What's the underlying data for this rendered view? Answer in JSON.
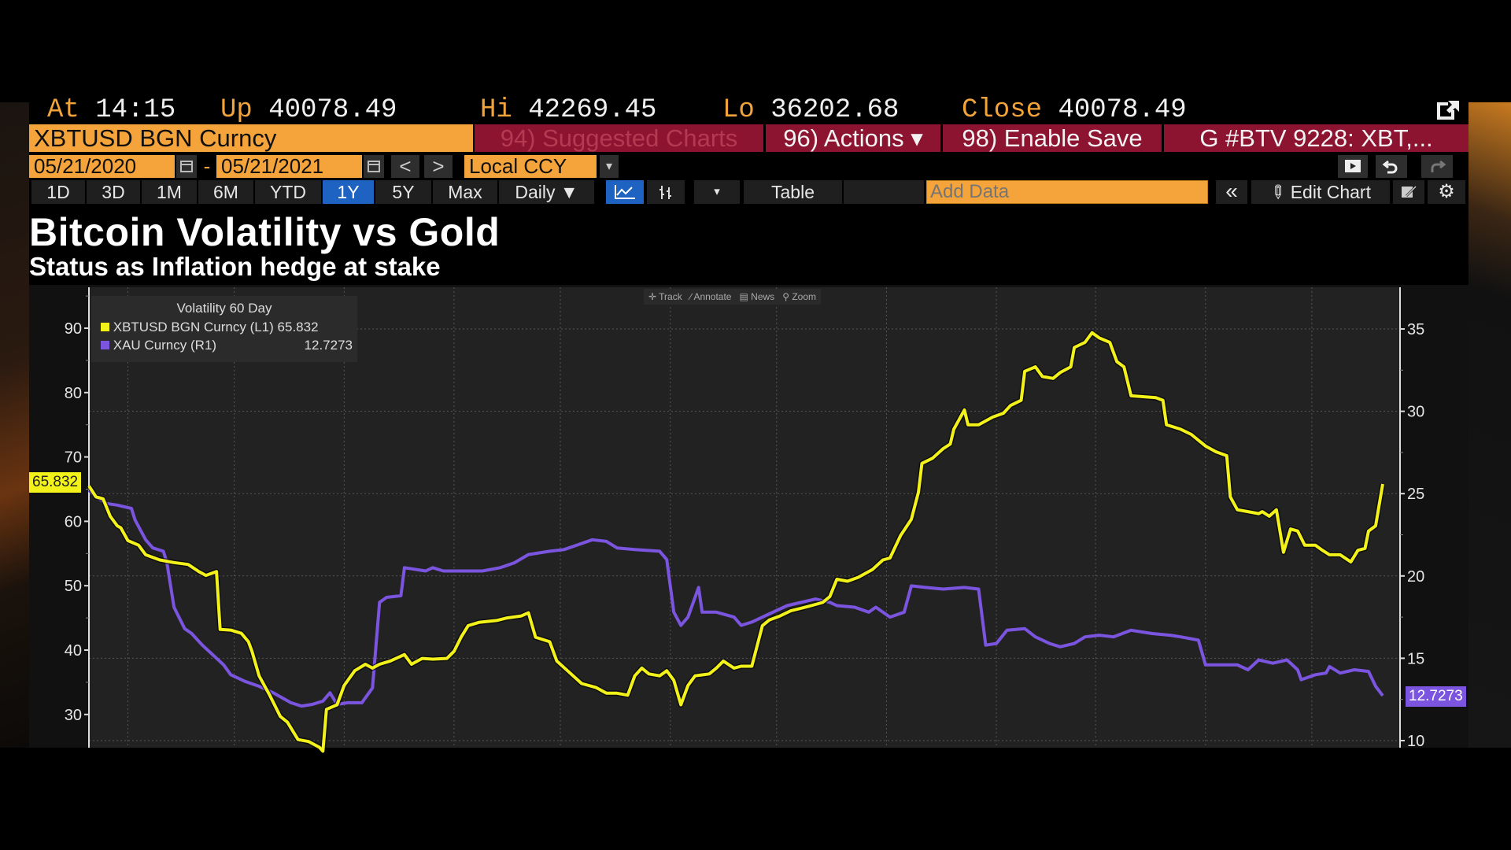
{
  "quote_bar": {
    "at_label": "At",
    "at_value": "14:15",
    "up_label": "Up",
    "up_value": "40078.49",
    "hi_label": "Hi",
    "hi_value": "42269.45",
    "lo_label": "Lo",
    "lo_value": "36202.68",
    "close_label": "Close",
    "close_value": "40078.49"
  },
  "command_bar": {
    "security": "XBTUSD BGN Curncy",
    "suggested": "94) Suggested Charts",
    "actions": "96) Actions ▾",
    "enable_save": "98) Enable Save",
    "chart_name": "G #BTV 9228: XBT,..."
  },
  "date_bar": {
    "start_date": "05/21/2020",
    "separator": "-",
    "end_date": "05/21/2021",
    "prev": "<",
    "next": ">",
    "currency": "Local CCY",
    "currency_dropdown": "▾"
  },
  "toolbar": {
    "ranges": [
      "1D",
      "3D",
      "1M",
      "6M",
      "YTD",
      "1Y",
      "5Y",
      "Max"
    ],
    "selected_range": "1Y",
    "period": "Daily ▼",
    "more": "▾",
    "table": "Table",
    "add_data_placeholder": "Add Data",
    "collapse": "«",
    "edit_chart": "Edit Chart"
  },
  "colors": {
    "btc": "#f2f21a",
    "gold": "#7b55e0",
    "accent": "#f4a43a",
    "red_bar": "#8c1430",
    "selected": "#1e63c2"
  },
  "chart_tools": {
    "track": "Track",
    "annotate": "Annotate",
    "news": "News",
    "zoom": "Zoom"
  },
  "chart_data": {
    "type": "line",
    "title": "Bitcoin Volatility vs Gold",
    "subtitle": "Status as Inflation hedge at stake",
    "legend_title": "Volatility 60 Day",
    "legend_placement": "top-left",
    "x_unit": "days since 05/21/2020",
    "xlim": [
      0,
      365
    ],
    "x_gridlines_days": [
      11,
      41,
      72,
      103,
      133,
      164,
      194,
      225,
      256,
      284,
      315,
      345
    ],
    "left_axis": {
      "ylim": [
        24.6,
        96
      ],
      "ticks": [
        30,
        40,
        50,
        60,
        70,
        80,
        90
      ]
    },
    "right_axis": {
      "ylim": [
        7.9,
        36
      ],
      "ticks": [
        10,
        15,
        20,
        25,
        30,
        35
      ]
    },
    "grid": true,
    "series": [
      {
        "name": "XBTUSD BGN Curncy",
        "axis_label": "(L1)",
        "axis": "left",
        "last": "65.832",
        "points": [
          [
            0,
            65.5
          ],
          [
            2,
            63.8
          ],
          [
            4,
            63.5
          ],
          [
            6,
            60.8
          ],
          [
            8,
            59.3
          ],
          [
            9,
            59.0
          ],
          [
            11,
            57.0
          ],
          [
            14,
            56.3
          ],
          [
            16,
            54.8
          ],
          [
            20,
            54.0
          ],
          [
            24,
            53.6
          ],
          [
            28,
            53.3
          ],
          [
            31,
            52.2
          ],
          [
            33,
            51.6
          ],
          [
            36,
            52.2
          ],
          [
            37,
            43.2
          ],
          [
            40,
            43.1
          ],
          [
            43,
            42.6
          ],
          [
            45,
            41.3
          ],
          [
            46,
            39.8
          ],
          [
            48,
            36.0
          ],
          [
            51,
            33.0
          ],
          [
            54,
            29.7
          ],
          [
            56,
            28.8
          ],
          [
            59,
            26.1
          ],
          [
            62,
            25.8
          ],
          [
            65,
            24.9
          ],
          [
            66,
            24.3
          ],
          [
            67,
            30.8
          ],
          [
            70,
            31.5
          ],
          [
            72,
            34.5
          ],
          [
            75,
            36.8
          ],
          [
            78,
            37.8
          ],
          [
            80,
            37.2
          ],
          [
            82,
            37.8
          ],
          [
            85,
            38.3
          ],
          [
            89,
            39.3
          ],
          [
            91,
            37.8
          ],
          [
            94,
            38.7
          ],
          [
            97,
            38.6
          ],
          [
            101,
            38.7
          ],
          [
            103,
            39.8
          ],
          [
            105,
            42.0
          ],
          [
            107,
            43.8
          ],
          [
            110,
            44.3
          ],
          [
            115,
            44.6
          ],
          [
            118,
            45.0
          ],
          [
            122,
            45.3
          ],
          [
            124,
            45.8
          ],
          [
            126,
            42.0
          ],
          [
            130,
            41.3
          ],
          [
            132,
            38.3
          ],
          [
            135,
            36.8
          ],
          [
            139,
            34.8
          ],
          [
            143,
            34.2
          ],
          [
            146,
            33.3
          ],
          [
            149,
            33.3
          ],
          [
            152,
            33.0
          ],
          [
            154,
            36.0
          ],
          [
            156,
            37.2
          ],
          [
            158,
            36.3
          ],
          [
            161,
            36.0
          ],
          [
            163,
            36.8
          ],
          [
            165,
            35.3
          ],
          [
            167,
            31.5
          ],
          [
            169,
            34.5
          ],
          [
            171,
            36.0
          ],
          [
            175,
            36.3
          ],
          [
            177,
            37.2
          ],
          [
            179,
            38.3
          ],
          [
            182,
            37.2
          ],
          [
            184,
            37.5
          ],
          [
            187,
            37.5
          ],
          [
            190,
            43.8
          ],
          [
            192,
            44.7
          ],
          [
            195,
            45.3
          ],
          [
            198,
            46.1
          ],
          [
            203,
            46.8
          ],
          [
            207,
            47.4
          ],
          [
            209,
            48.3
          ],
          [
            211,
            51.0
          ],
          [
            214,
            50.7
          ],
          [
            217,
            51.3
          ],
          [
            221,
            52.5
          ],
          [
            224,
            54.0
          ],
          [
            226,
            54.3
          ],
          [
            229,
            57.8
          ],
          [
            232,
            60.3
          ],
          [
            234,
            64.5
          ],
          [
            235,
            69.0
          ],
          [
            238,
            69.8
          ],
          [
            241,
            71.3
          ],
          [
            243,
            72.0
          ],
          [
            244,
            74.3
          ],
          [
            247,
            77.3
          ],
          [
            248,
            75.0
          ],
          [
            251,
            75.0
          ],
          [
            255,
            76.2
          ],
          [
            258,
            76.8
          ],
          [
            260,
            78.0
          ],
          [
            263,
            78.8
          ],
          [
            264,
            83.3
          ],
          [
            267,
            84.0
          ],
          [
            269,
            82.5
          ],
          [
            272,
            82.2
          ],
          [
            274,
            83.1
          ],
          [
            277,
            84.0
          ],
          [
            278,
            87.0
          ],
          [
            281,
            87.8
          ],
          [
            283,
            89.3
          ],
          [
            285,
            88.5
          ],
          [
            288,
            87.8
          ],
          [
            290,
            84.8
          ],
          [
            292,
            84.0
          ],
          [
            294,
            79.5
          ],
          [
            301,
            79.2
          ],
          [
            303,
            78.8
          ],
          [
            304,
            75.0
          ],
          [
            308,
            74.3
          ],
          [
            311,
            73.5
          ],
          [
            315,
            71.7
          ],
          [
            318,
            70.8
          ],
          [
            321,
            70.2
          ],
          [
            322,
            63.8
          ],
          [
            324,
            61.8
          ],
          [
            327,
            61.5
          ],
          [
            330,
            61.2
          ],
          [
            331,
            61.5
          ],
          [
            333,
            60.8
          ],
          [
            335,
            61.8
          ],
          [
            337,
            55.2
          ],
          [
            339,
            58.8
          ],
          [
            341,
            58.5
          ],
          [
            343,
            56.3
          ],
          [
            346,
            56.3
          ],
          [
            348,
            55.5
          ],
          [
            350,
            54.8
          ],
          [
            353,
            54.8
          ],
          [
            356,
            53.7
          ],
          [
            358,
            55.5
          ],
          [
            360,
            55.8
          ],
          [
            361,
            58.5
          ],
          [
            363,
            59.3
          ],
          [
            365,
            65.8
          ]
        ]
      },
      {
        "name": "XAU Curncy",
        "axis_label": "(R1)",
        "axis": "right",
        "last": "12.7273",
        "points": [
          [
            0,
            25.2
          ],
          [
            2,
            24.8
          ],
          [
            5,
            24.4
          ],
          [
            8,
            24.3
          ],
          [
            12,
            24.1
          ],
          [
            13,
            23.4
          ],
          [
            16,
            22.2
          ],
          [
            18,
            21.7
          ],
          [
            21,
            21.5
          ],
          [
            22,
            20.8
          ],
          [
            24,
            18.1
          ],
          [
            27,
            16.8
          ],
          [
            29,
            16.5
          ],
          [
            32,
            15.8
          ],
          [
            35,
            15.2
          ],
          [
            38,
            14.6
          ],
          [
            40,
            14.0
          ],
          [
            44,
            13.6
          ],
          [
            48,
            13.3
          ],
          [
            52,
            12.9
          ],
          [
            57,
            12.3
          ],
          [
            60,
            12.1
          ],
          [
            63,
            12.2
          ],
          [
            66,
            12.4
          ],
          [
            68,
            12.9
          ],
          [
            70,
            12.2
          ],
          [
            73,
            12.3
          ],
          [
            77,
            12.3
          ],
          [
            80,
            13.2
          ],
          [
            82,
            18.4
          ],
          [
            84,
            18.7
          ],
          [
            88,
            18.8
          ],
          [
            89,
            20.5
          ],
          [
            95,
            20.3
          ],
          [
            97,
            20.5
          ],
          [
            100,
            20.3
          ],
          [
            105,
            20.3
          ],
          [
            111,
            20.3
          ],
          [
            116,
            20.5
          ],
          [
            120,
            20.8
          ],
          [
            124,
            21.3
          ],
          [
            130,
            21.5
          ],
          [
            134,
            21.6
          ],
          [
            138,
            21.9
          ],
          [
            142,
            22.2
          ],
          [
            146,
            22.1
          ],
          [
            149,
            21.7
          ],
          [
            154,
            21.6
          ],
          [
            161,
            21.5
          ],
          [
            163,
            21.0
          ],
          [
            165,
            17.8
          ],
          [
            167,
            17.0
          ],
          [
            169,
            17.5
          ],
          [
            172,
            19.3
          ],
          [
            173,
            17.8
          ],
          [
            177,
            17.8
          ],
          [
            182,
            17.5
          ],
          [
            184,
            17.0
          ],
          [
            187,
            17.2
          ],
          [
            190,
            17.5
          ],
          [
            194,
            17.9
          ],
          [
            197,
            18.2
          ],
          [
            201,
            18.4
          ],
          [
            205,
            18.6
          ],
          [
            209,
            18.4
          ],
          [
            211,
            18.2
          ],
          [
            216,
            18.1
          ],
          [
            220,
            17.8
          ],
          [
            222,
            18.1
          ],
          [
            226,
            17.5
          ],
          [
            230,
            17.8
          ],
          [
            232,
            19.4
          ],
          [
            236,
            19.3
          ],
          [
            241,
            19.2
          ],
          [
            247,
            19.3
          ],
          [
            251,
            19.2
          ],
          [
            253,
            15.8
          ],
          [
            256,
            15.9
          ],
          [
            259,
            16.7
          ],
          [
            264,
            16.8
          ],
          [
            267,
            16.3
          ],
          [
            271,
            15.9
          ],
          [
            274,
            15.7
          ],
          [
            278,
            15.9
          ],
          [
            281,
            16.3
          ],
          [
            285,
            16.4
          ],
          [
            289,
            16.3
          ],
          [
            294,
            16.7
          ],
          [
            300,
            16.5
          ],
          [
            305,
            16.4
          ],
          [
            308,
            16.3
          ],
          [
            313,
            16.1
          ],
          [
            315,
            14.6
          ],
          [
            319,
            14.6
          ],
          [
            324,
            14.6
          ],
          [
            327,
            14.3
          ],
          [
            330,
            14.9
          ],
          [
            334,
            14.7
          ],
          [
            338,
            14.9
          ],
          [
            341,
            14.3
          ],
          [
            342,
            13.7
          ],
          [
            346,
            14.0
          ],
          [
            349,
            14.1
          ],
          [
            350,
            14.5
          ],
          [
            353,
            14.1
          ],
          [
            357,
            14.3
          ],
          [
            361,
            14.2
          ],
          [
            363,
            13.3
          ],
          [
            365,
            12.73
          ]
        ]
      }
    ]
  }
}
